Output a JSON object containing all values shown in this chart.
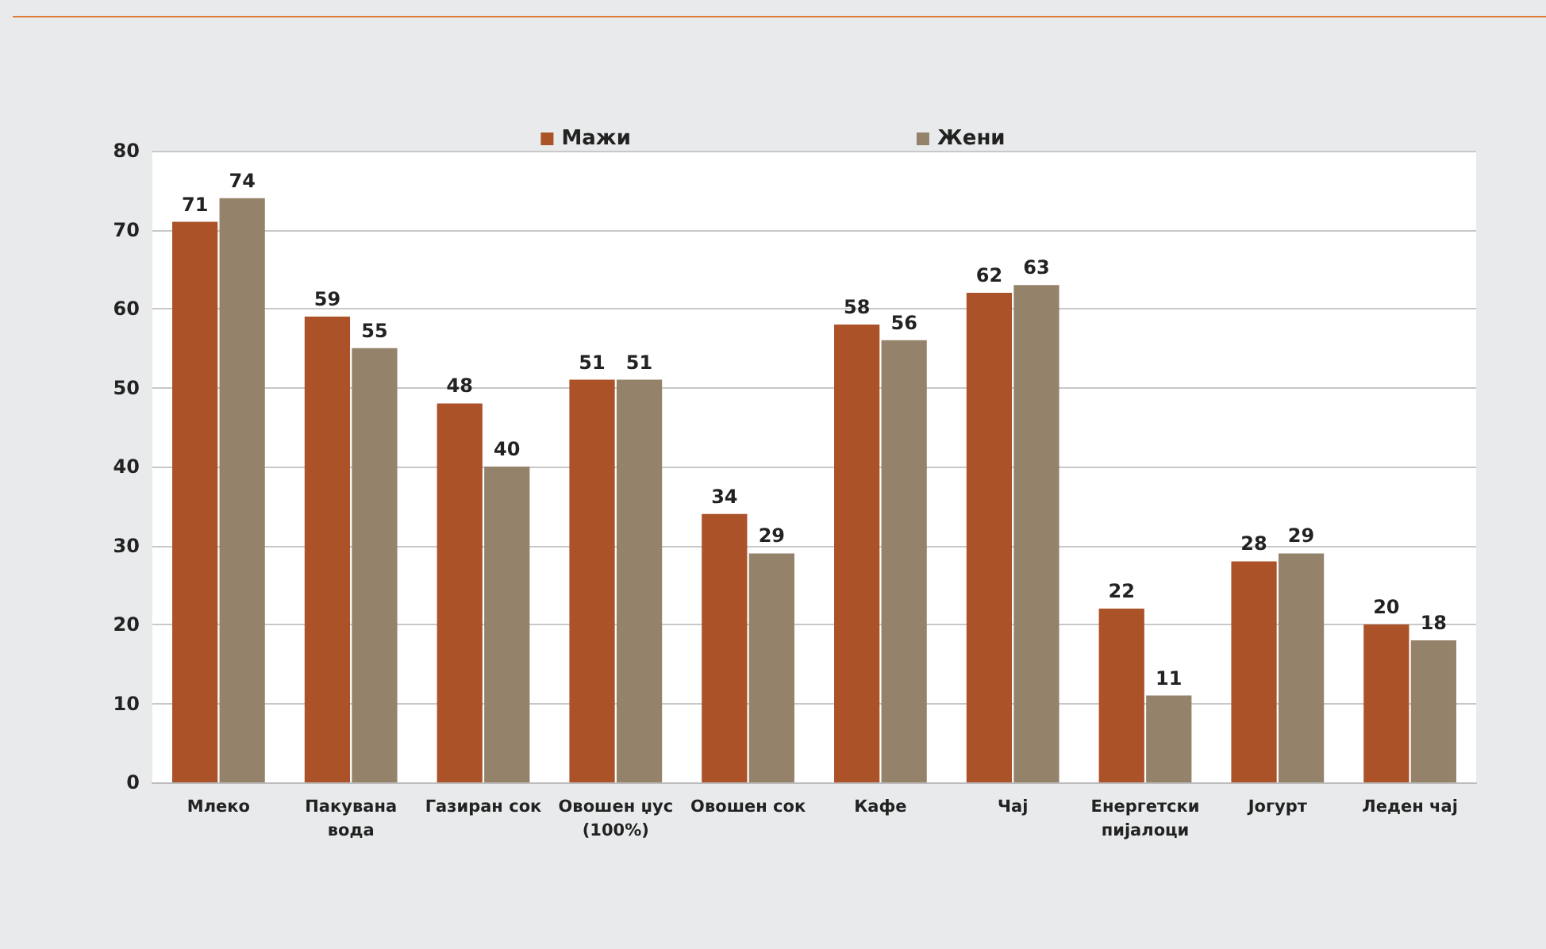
{
  "chart_data": {
    "type": "bar",
    "categories": [
      "Млеко",
      "Пакувана\nвода",
      "Газиран сок",
      "Овошен џус\n(100%)",
      "Овошен сок",
      "Кафе",
      "Чај",
      "Енергетски\nпијалоци",
      "Јогурт",
      "Леден чај"
    ],
    "series": [
      {
        "name": "Мажи",
        "color": "#ab5229",
        "values": [
          71,
          59,
          48,
          51,
          34,
          58,
          62,
          22,
          28,
          20
        ]
      },
      {
        "name": "Жени",
        "color": "#94826a",
        "values": [
          74,
          55,
          40,
          51,
          29,
          56,
          63,
          11,
          29,
          18
        ]
      }
    ],
    "ylim": [
      0,
      80
    ],
    "yticks": [
      0,
      10,
      20,
      30,
      40,
      50,
      60,
      70,
      80
    ],
    "grid": "y",
    "legend": "top",
    "data_labels": true
  }
}
